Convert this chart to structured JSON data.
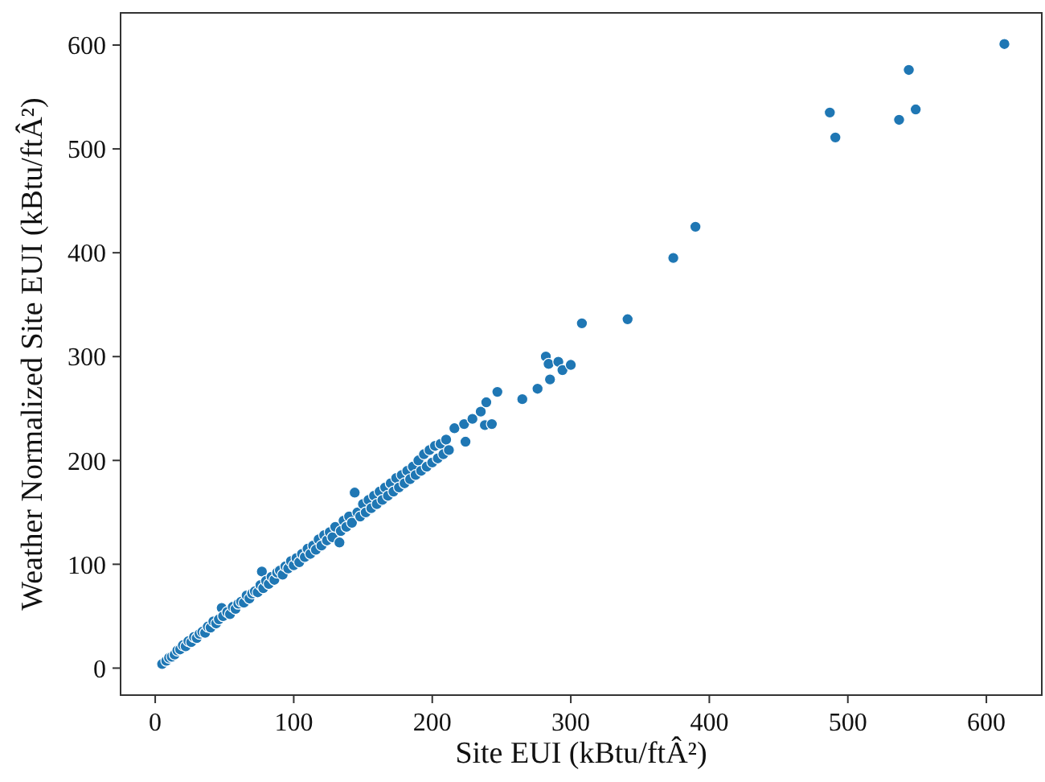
{
  "chart_data": {
    "type": "scatter",
    "xlabel": "Site EUI (kBtu/ftÂ²)",
    "ylabel": "Weather Normalized Site EUI (kBtu/ftÂ²)",
    "xlim": [
      -25,
      640
    ],
    "ylim": [
      -26,
      631
    ],
    "xticks": [
      0,
      100,
      200,
      300,
      400,
      500,
      600
    ],
    "yticks": [
      0,
      100,
      200,
      300,
      400,
      500,
      600
    ],
    "grid": false,
    "series": [
      {
        "color": "#1f77b4",
        "x": [
          5,
          8,
          10,
          12,
          14,
          16,
          18,
          20,
          22,
          24,
          26,
          28,
          30,
          32,
          34,
          36,
          38,
          40,
          42,
          44,
          46,
          48,
          49,
          52,
          54,
          56,
          58,
          60,
          62,
          64,
          66,
          68,
          70,
          72,
          74,
          76,
          77,
          78,
          80,
          82,
          84,
          86,
          88,
          90,
          92,
          94,
          96,
          98,
          100,
          102,
          104,
          106,
          108,
          110,
          112,
          114,
          116,
          118,
          120,
          122,
          124,
          126,
          128,
          130,
          133,
          134,
          136,
          138,
          140,
          142,
          144,
          146,
          148,
          150,
          152,
          154,
          156,
          158,
          160,
          162,
          164,
          166,
          168,
          170,
          172,
          174,
          176,
          178,
          180,
          182,
          184,
          186,
          188,
          190,
          192,
          194,
          196,
          198,
          200,
          202,
          204,
          206,
          208,
          210,
          212,
          216,
          223,
          224,
          229,
          235,
          238,
          239,
          243,
          247,
          265,
          276,
          282,
          284,
          285,
          291,
          294,
          300,
          308,
          341,
          374,
          390,
          487,
          491,
          537,
          544,
          549,
          613
        ],
        "values": [
          4,
          7,
          10,
          11,
          13,
          17,
          18,
          22,
          21,
          26,
          25,
          30,
          29,
          33,
          35,
          34,
          40,
          39,
          45,
          43,
          47,
          58,
          50,
          54,
          52,
          59,
          57,
          62,
          64,
          63,
          70,
          67,
          72,
          74,
          73,
          80,
          93,
          77,
          84,
          81,
          88,
          85,
          92,
          94,
          90,
          98,
          96,
          103,
          99,
          106,
          102,
          110,
          107,
          115,
          110,
          118,
          114,
          124,
          118,
          128,
          123,
          131,
          126,
          136,
          121,
          132,
          142,
          136,
          146,
          140,
          169,
          150,
          146,
          158,
          150,
          162,
          154,
          166,
          158,
          170,
          162,
          174,
          166,
          178,
          170,
          183,
          174,
          186,
          178,
          190,
          182,
          194,
          186,
          200,
          190,
          206,
          194,
          210,
          198,
          214,
          202,
          216,
          206,
          220,
          210,
          231,
          235,
          218,
          240,
          247,
          234,
          256,
          235,
          266,
          259,
          269,
          300,
          293,
          278,
          295,
          287,
          292,
          332,
          336,
          395,
          425,
          535,
          511,
          528,
          576,
          538,
          601
        ]
      }
    ]
  }
}
